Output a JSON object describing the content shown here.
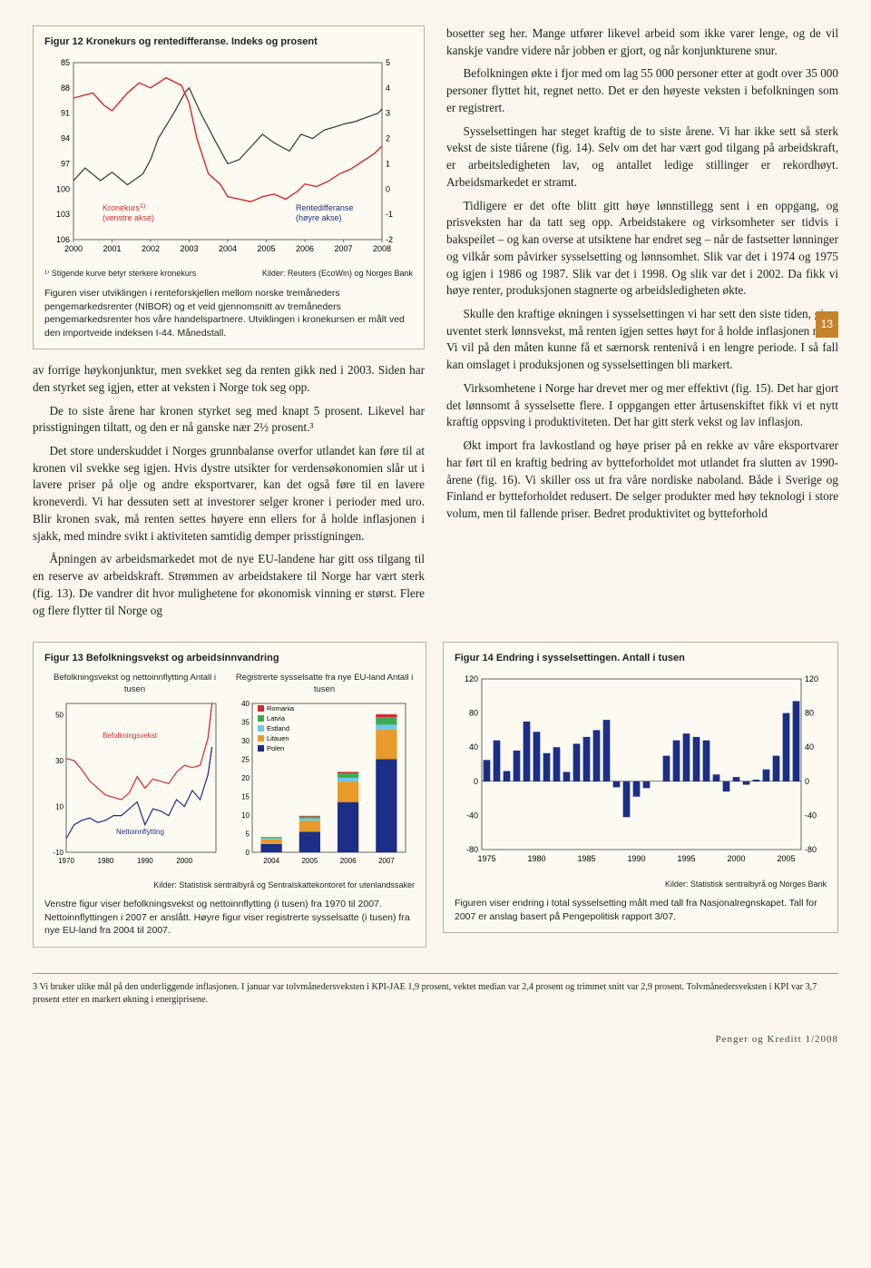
{
  "fig12": {
    "title": "Figur 12 Kronekurs og rentedifferanse. Indeks og prosent",
    "left_label": "Kronekurs¹⁾\n(venstre akse)",
    "right_label": "Rentedifferanse\n(høyre akse)",
    "footnote": "¹⁾ Stigende kurve betyr sterkere kronekurs",
    "source": "Kilder: Reuters (EcoWin) og Norges Bank",
    "x_labels": [
      "2000",
      "2001",
      "2002",
      "2003",
      "2004",
      "2005",
      "2006",
      "2007",
      "2008"
    ],
    "left_y": {
      "min": 85,
      "max": 106,
      "step": 3
    },
    "right_y": {
      "min": -2,
      "max": 5,
      "step": 1
    },
    "kronekurs": [
      [
        2000.0,
        99
      ],
      [
        2000.3,
        97.5
      ],
      [
        2000.7,
        99
      ],
      [
        2001.0,
        98
      ],
      [
        2001.4,
        99.5
      ],
      [
        2001.8,
        98.2
      ],
      [
        2002.0,
        96.5
      ],
      [
        2002.2,
        94
      ],
      [
        2002.6,
        91
      ],
      [
        2002.9,
        88.5
      ],
      [
        2003.0,
        88
      ],
      [
        2003.3,
        91
      ],
      [
        2003.7,
        94.5
      ],
      [
        2004.0,
        97
      ],
      [
        2004.3,
        96.5
      ],
      [
        2004.6,
        95
      ],
      [
        2004.9,
        93.5
      ],
      [
        2005.2,
        94.5
      ],
      [
        2005.6,
        95.5
      ],
      [
        2005.9,
        93.5
      ],
      [
        2006.2,
        94
      ],
      [
        2006.5,
        93
      ],
      [
        2006.8,
        92.6
      ],
      [
        2007.0,
        92.3
      ],
      [
        2007.3,
        92
      ],
      [
        2007.6,
        91.5
      ],
      [
        2007.9,
        91
      ],
      [
        2008.0,
        90.5
      ]
    ],
    "rentediff": [
      [
        2000.0,
        3.6
      ],
      [
        2000.5,
        3.8
      ],
      [
        2000.8,
        3.3
      ],
      [
        2001.0,
        3.1
      ],
      [
        2001.4,
        3.8
      ],
      [
        2001.7,
        4.2
      ],
      [
        2002.0,
        4.0
      ],
      [
        2002.4,
        4.4
      ],
      [
        2002.8,
        4.1
      ],
      [
        2003.0,
        3.4
      ],
      [
        2003.2,
        2.0
      ],
      [
        2003.5,
        0.6
      ],
      [
        2003.8,
        0.2
      ],
      [
        2004.0,
        -0.3
      ],
      [
        2004.3,
        -0.4
      ],
      [
        2004.6,
        -0.5
      ],
      [
        2004.9,
        -0.3
      ],
      [
        2005.2,
        -0.2
      ],
      [
        2005.5,
        -0.4
      ],
      [
        2005.8,
        -0.1
      ],
      [
        2006.0,
        0.2
      ],
      [
        2006.3,
        0.1
      ],
      [
        2006.6,
        0.3
      ],
      [
        2006.9,
        0.6
      ],
      [
        2007.2,
        0.8
      ],
      [
        2007.5,
        1.1
      ],
      [
        2007.8,
        1.4
      ],
      [
        2008.0,
        1.7
      ]
    ],
    "colors": {
      "kronekurs": "#333333",
      "rentediff": "#d22c2c",
      "axis": "#000",
      "grid": "#d7cdb7"
    },
    "desc": "Figuren viser utviklingen i renteforskjellen mellom norske tremåneders pengemarkedsrenter (NIBOR) og et veid gjennomsnitt av tremåneders pengemarkedsrenter hos våre handelspartnere. Utviklingen i kronekursen er målt ved den importveide indeksen I-44. Månedstall."
  },
  "body_left": [
    "av forrige høykonjunktur, men svekket seg da renten gikk ned i 2003. Siden har den styrket seg igjen, etter at veksten i Norge tok seg opp.",
    "De to siste årene har kronen styrket seg med knapt 5 prosent. Likevel har prisstigningen tiltatt, og den er nå ganske nær 2½ prosent.³",
    "Det store underskuddet i Norges grunnbalanse overfor utlandet kan føre til at kronen vil svekke seg igjen. Hvis dystre utsikter for verdensøkonomien slår ut i lavere priser på olje og andre eksportvarer, kan det også føre til en lavere kroneverdi. Vi har dessuten sett at investorer selger kroner i perioder med uro. Blir kronen svak, må renten settes høyere enn ellers for å holde inflasjonen i sjakk, med mindre svikt i aktiviteten samtidig demper prisstigningen.",
    "Åpningen av arbeidsmarkedet mot de nye EU-landene har gitt oss tilgang til en reserve av arbeidskraft. Strømmen av arbeidstakere til Norge har vært sterk (fig. 13). De vandrer dit hvor mulighetene for økonomisk vinning er størst. Flere og flere flytter til Norge og"
  ],
  "body_right": [
    "bosetter seg her. Mange utfører likevel arbeid som ikke varer lenge, og de vil kanskje vandre videre når jobben er gjort, og når konjunkturene snur.",
    "Befolkningen økte i fjor med om lag 55 000 personer etter at godt over 35 000 personer flyttet hit, regnet netto. Det er den høyeste veksten i befolkningen som er registrert.",
    "Sysselsettingen har steget kraftig de to siste årene. Vi har ikke sett så sterk vekst de siste tiårene (fig. 14). Selv om det har vært god tilgang på arbeidskraft, er arbeitsledigheten lav, og antallet ledige stillinger er rekordhøyt. Arbeidsmarkedet er stramt.",
    "Tidligere er det ofte blitt gitt høye lønnstillegg sent i en oppgang, og prisveksten har da tatt seg opp. Arbeidstakere og virksomheter ser tidvis i bakspeilet – og kan overse at utsiktene har endret seg – når de fastsetter lønninger og vilkår som påvirker sysselsetting og lønnsomhet. Slik var det i 1974 og 1975 og igjen i 1986 og 1987. Slik var det i 1998. Og slik var det i 2002. Da fikk vi høye renter, produksjonen stagnerte og arbeidsledigheten økte.",
    "Skulle den kraftige økningen i sysselsettingen vi har sett den siste tiden, gi en uventet sterk lønnsvekst, må renten igjen settes høyt for å holde inflasjonen nede. Vi vil på den måten kunne få et særnorsk rentenivå i en lengre periode. I så fall kan omslaget i produksjonen og sysselsettingen bli markert.",
    "Virksomhetene i Norge har drevet mer og mer effektivt (fig. 15). Det har gjort det lønnsomt å sysselsette flere. I oppgangen etter årtusenskiftet fikk vi et nytt kraftig oppsving i produktiviteten. Det har gitt sterk vekst og lav inflasjon.",
    "Økt import fra lavkostland og høye priser på en rekke av våre eksportvarer har ført til en kraftig bedring av bytteforholdet mot utlandet fra slutten av 1990-årene (fig. 16). Vi skiller oss ut fra våre nordiske naboland. Både i Sverige og Finland er bytteforholdet redusert. De selger produkter med høy teknologi i store volum, men til fallende priser. Bedret produktivitet og bytteforhold"
  ],
  "page_num": "13",
  "fig13": {
    "title": "Figur 13 Befolkningsvekst og arbeidsinnvandring",
    "left_subtitle": "Befolkningsvekst og nettoinnflytting\nAntall i tusen",
    "right_subtitle": "Registrerte sysselsatte fra nye EU-land\nAntall i tusen",
    "left_y": {
      "min": -10,
      "max": 50,
      "step": 20,
      "ticks": [
        -10,
        10,
        30,
        50
      ]
    },
    "left_x": [
      "1970",
      "1980",
      "1990",
      "2000"
    ],
    "befolkning": [
      [
        1970,
        31
      ],
      [
        1972,
        30
      ],
      [
        1974,
        26
      ],
      [
        1976,
        21
      ],
      [
        1978,
        18
      ],
      [
        1980,
        15
      ],
      [
        1982,
        14
      ],
      [
        1984,
        13
      ],
      [
        1986,
        16
      ],
      [
        1988,
        23
      ],
      [
        1990,
        18
      ],
      [
        1992,
        22
      ],
      [
        1994,
        21
      ],
      [
        1996,
        20
      ],
      [
        1998,
        25
      ],
      [
        2000,
        28
      ],
      [
        2002,
        27
      ],
      [
        2004,
        28
      ],
      [
        2006,
        40
      ],
      [
        2007,
        55
      ]
    ],
    "netto": [
      [
        1970,
        -4
      ],
      [
        1972,
        2
      ],
      [
        1974,
        4
      ],
      [
        1976,
        5
      ],
      [
        1978,
        3
      ],
      [
        1980,
        4
      ],
      [
        1982,
        6
      ],
      [
        1984,
        6
      ],
      [
        1986,
        9
      ],
      [
        1988,
        12
      ],
      [
        1990,
        2
      ],
      [
        1992,
        9
      ],
      [
        1994,
        8
      ],
      [
        1996,
        6
      ],
      [
        1998,
        13
      ],
      [
        2000,
        10
      ],
      [
        2002,
        17
      ],
      [
        2004,
        13
      ],
      [
        2006,
        24
      ],
      [
        2007,
        36
      ]
    ],
    "left_series_labels": {
      "befolkning": "Befolkningsvekst",
      "netto": "Nettoinnflytting"
    },
    "left_colors": {
      "befolkning": "#d22c2c",
      "netto": "#1a2f85"
    },
    "right_y": {
      "min": 0,
      "max": 40,
      "step": 5
    },
    "right_x": [
      "2004",
      "2005",
      "2006",
      "2007"
    ],
    "right_legend": [
      {
        "label": "Romania",
        "color": "#d22c2c"
      },
      {
        "label": "Latvia",
        "color": "#3bab55"
      },
      {
        "label": "Estland",
        "color": "#6fc8e8"
      },
      {
        "label": "Litauen",
        "color": "#e99a28"
      },
      {
        "label": "Polen",
        "color": "#1a2f85"
      }
    ],
    "stacked": [
      {
        "year": "2004",
        "Polen": 2.2,
        "Litauen": 1.3,
        "Estland": 0.3,
        "Latvia": 0.2,
        "Romania": 0.1
      },
      {
        "year": "2005",
        "Polen": 5.5,
        "Litauen": 3.0,
        "Estland": 0.6,
        "Latvia": 0.5,
        "Romania": 0.2
      },
      {
        "year": "2006",
        "Polen": 13.5,
        "Litauen": 5.5,
        "Estland": 1.0,
        "Latvia": 1.2,
        "Romania": 0.4
      },
      {
        "year": "2007",
        "Polen": 25,
        "Litauen": 8,
        "Estland": 1.3,
        "Latvia": 2.0,
        "Romania": 0.8
      }
    ],
    "source": "Kilder: Statistisk sentralbyrå og Sentralskattekontoret for utenlandssaker",
    "desc": "Venstre figur viser befolkningsvekst og nettoinnflytting (i tusen) fra 1970 til 2007. Nettoinnflyttingen i 2007 er anslått. Høyre figur viser registrerte sysselsatte (i tusen) fra nye EU-land fra 2004 til 2007."
  },
  "fig14": {
    "title": "Figur 14 Endring i sysselsettingen. Antall i tusen",
    "y": {
      "min": -80,
      "max": 120,
      "step": 40
    },
    "x": [
      "1975",
      "1980",
      "1985",
      "1990",
      "1995",
      "2000",
      "2005"
    ],
    "bars": [
      25,
      48,
      12,
      36,
      70,
      58,
      33,
      40,
      11,
      44,
      52,
      60,
      72,
      -7,
      -42,
      -18,
      -8,
      0,
      30,
      48,
      56,
      52,
      48,
      8,
      -12,
      5,
      -4,
      2,
      14,
      30,
      80,
      94
    ],
    "bar_color": "#1a2f85",
    "source": "Kilder: Statistisk sentralbyrå og Norges Bank",
    "desc": "Figuren viser endring i total sysselsetting målt med tall fra Nasjonalregnskapet. Tall for 2007 er anslag basert på Pengepolitisk rapport 3/07."
  },
  "footnote3": "3  Vi bruker ulike mål på den underliggende inflasjonen. I januar var tolvmånedersveksten i KPI-JAE 1,9 prosent, vektet median var 2,4 prosent og trimmet snitt var 2,9 prosent. Tolvmånedersveksten i KPI var 3,7 prosent etter en markert økning i energiprisene.",
  "imprint": "Penger og Kreditt 1/2008"
}
